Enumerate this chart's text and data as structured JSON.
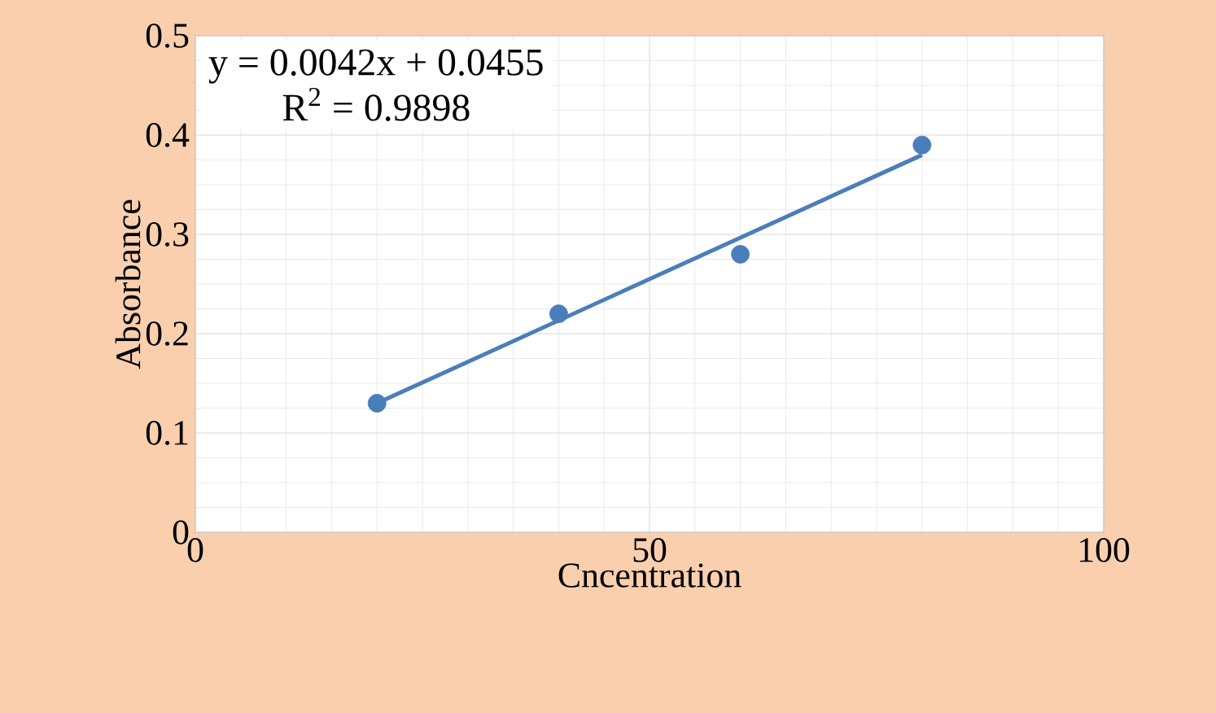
{
  "chart_data": {
    "type": "scatter",
    "xlabel": "Cncentration",
    "ylabel": "Absorbance",
    "x": [
      20,
      40,
      60,
      80
    ],
    "series": [
      {
        "color": "#4a7ebb",
        "marker": "circle",
        "values": [
          0.13,
          0.22,
          0.28,
          0.39
        ]
      },
      {
        "type": "line",
        "color": "#4a7ebb",
        "x": [
          20,
          80
        ],
        "values": [
          0.13,
          0.38
        ],
        "line_style": "solid"
      }
    ],
    "xlim": [
      0,
      100
    ],
    "xticks": [
      0,
      50,
      100
    ],
    "ylim": [
      0,
      0.5
    ],
    "yticks": [
      0,
      0.1,
      0.2,
      0.3,
      0.4,
      0.5
    ],
    "grid": true,
    "annotations": [
      "y = 0.0042x + 0.0455",
      "R$^{2}$ = 0.9898"
    ]
  }
}
